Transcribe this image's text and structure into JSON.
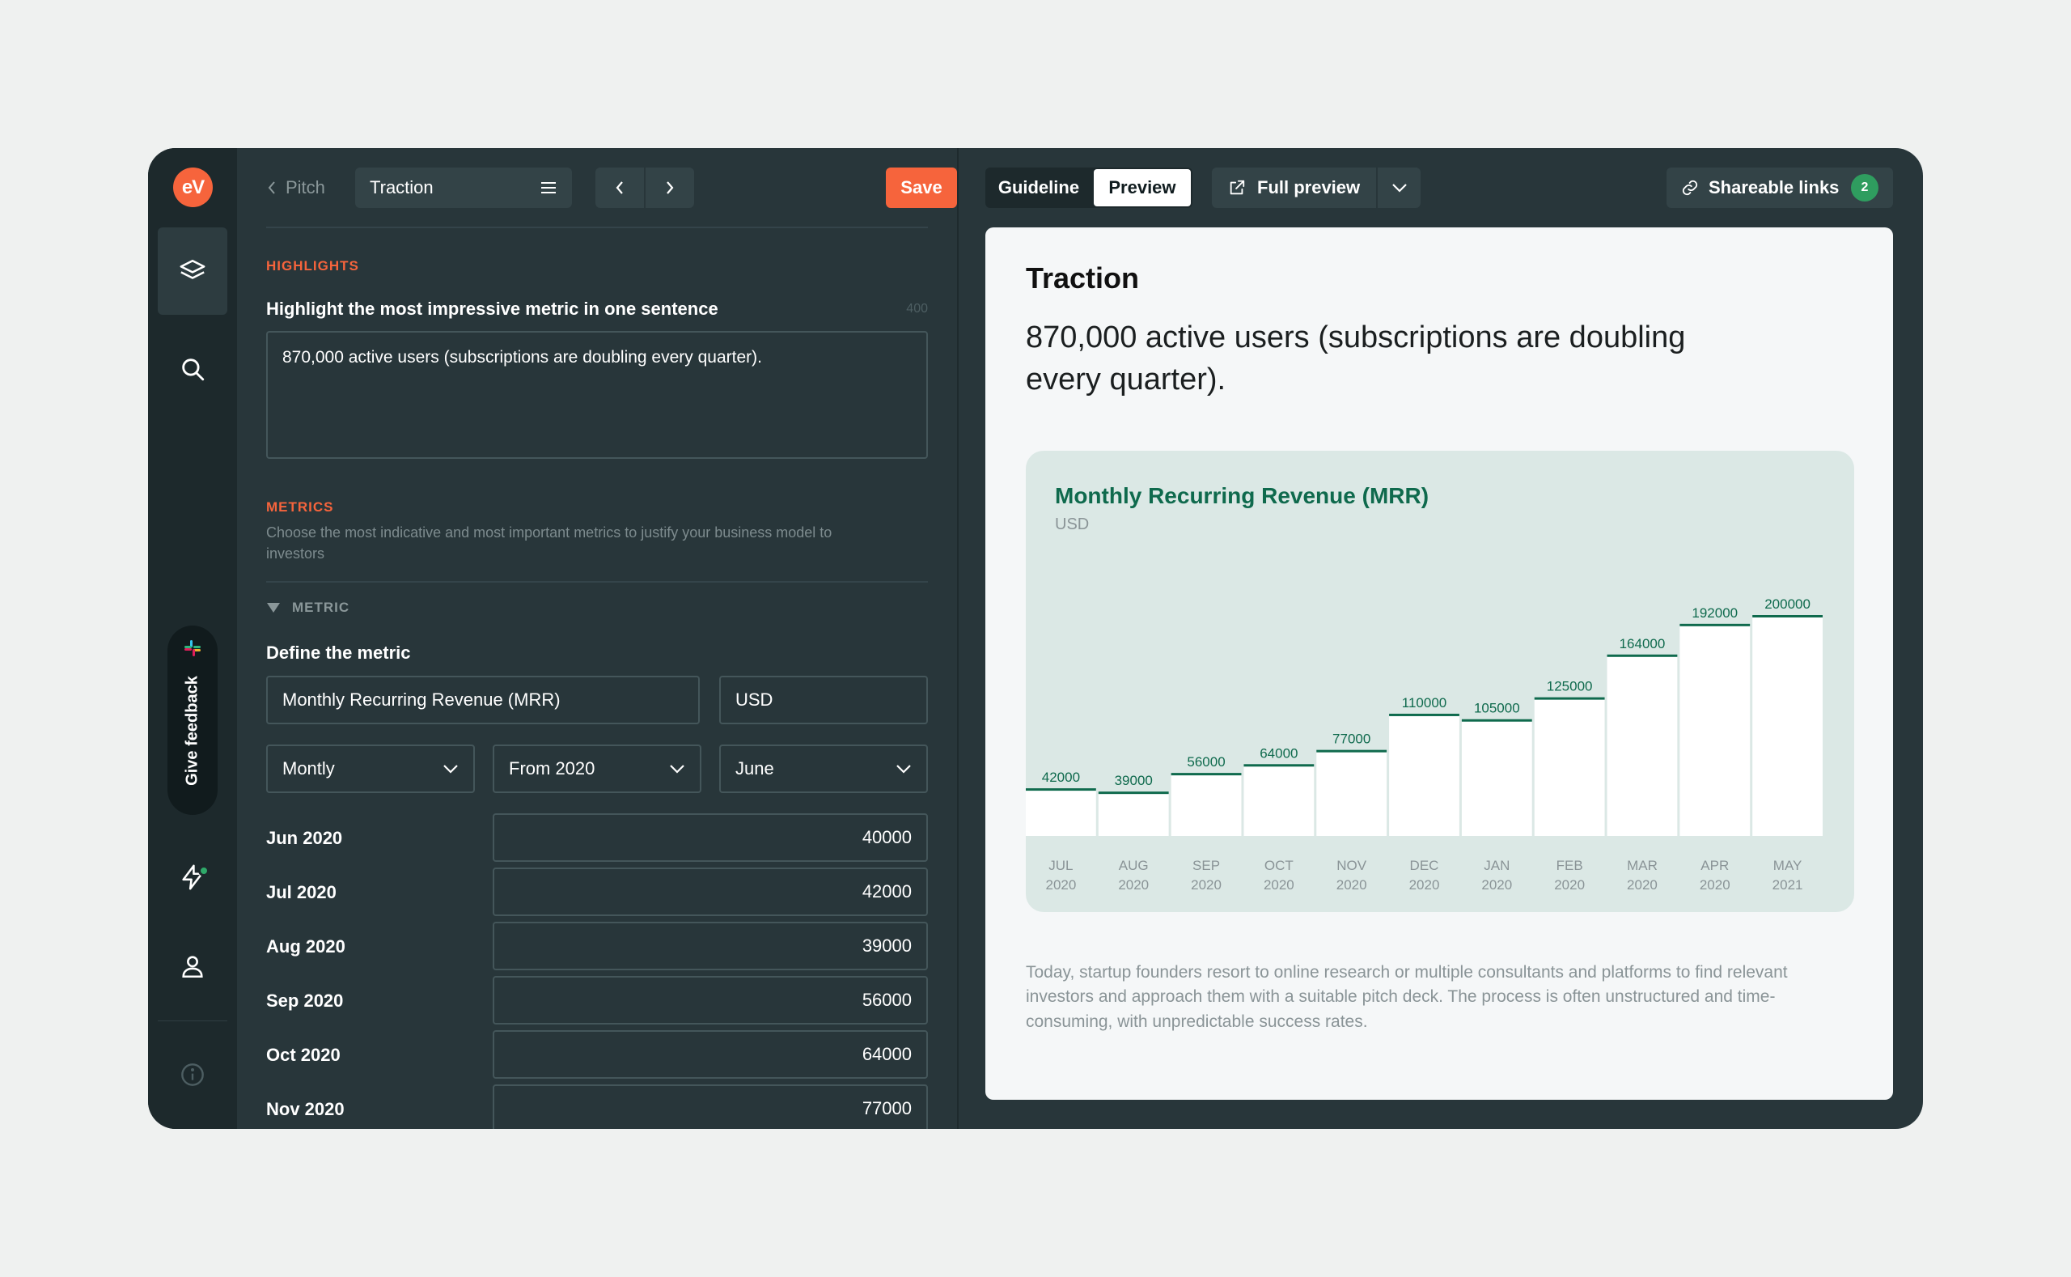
{
  "rail": {
    "logo_text": "eV",
    "feedback_label": "Give feedback"
  },
  "editor": {
    "back_label": "Pitch",
    "slide_name": "Traction",
    "save_label": "Save",
    "highlights_heading": "HIGHLIGHTS",
    "highlight_field_label": "Highlight the most impressive metric in one sentence",
    "highlight_char_limit": "400",
    "highlight_value": "870,000 active users (subscriptions are doubling every quarter).",
    "metrics_heading": "METRICS",
    "metrics_help": "Choose the most indicative and most important metrics to justify your business model to investors",
    "metric_collapse_label": "METRIC",
    "define_label": "Define the metric",
    "metric_name_value": "Monthly Recurring Revenue (MRR)",
    "unit_value": "USD",
    "frequency_value": "Montly",
    "from_value": "From 2020",
    "month_value": "June",
    "rows": [
      {
        "label": "Jun 2020",
        "value": "40000"
      },
      {
        "label": "Jul 2020",
        "value": "42000"
      },
      {
        "label": "Aug 2020",
        "value": "39000"
      },
      {
        "label": "Sep 2020",
        "value": "56000"
      },
      {
        "label": "Oct 2020",
        "value": "64000"
      },
      {
        "label": "Nov 2020",
        "value": "77000"
      }
    ]
  },
  "preview": {
    "tab_guideline": "Guideline",
    "tab_preview": "Preview",
    "full_preview_label": "Full preview",
    "shareable_label": "Shareable links",
    "shareable_count": "2",
    "slide_title": "Traction",
    "headline": "870,000 active users (subscriptions are doubling every quarter).",
    "body_text": "Today, startup founders resort to online research or multiple consultants and platforms to find relevant investors and approach them with a suitable pitch deck. The process is often unstructured and time-consuming, with unpredictable success rates."
  },
  "chart_data": {
    "type": "bar",
    "title": "Monthly Recurring Revenue (MRR)",
    "subtitle": "USD",
    "categories": [
      "JUL 2020",
      "AUG 2020",
      "SEP 2020",
      "OCT 2020",
      "NOV 2020",
      "DEC 2020",
      "JAN 2020",
      "FEB 2020",
      "MAR 2020",
      "APR 2020",
      "MAY 2021"
    ],
    "category_lines": [
      [
        "JUL",
        "2020"
      ],
      [
        "AUG",
        "2020"
      ],
      [
        "SEP",
        "2020"
      ],
      [
        "OCT",
        "2020"
      ],
      [
        "NOV",
        "2020"
      ],
      [
        "DEC",
        "2020"
      ],
      [
        "JAN",
        "2020"
      ],
      [
        "FEB",
        "2020"
      ],
      [
        "MAR",
        "2020"
      ],
      [
        "APR",
        "2020"
      ],
      [
        "MAY",
        "2021"
      ]
    ],
    "values": [
      42000,
      39000,
      56000,
      64000,
      77000,
      110000,
      105000,
      125000,
      164000,
      192000,
      200000
    ],
    "ylim": [
      0,
      200000
    ],
    "grid": false,
    "bar_color": "#ffffff",
    "line_color": "#0f6a4d"
  }
}
